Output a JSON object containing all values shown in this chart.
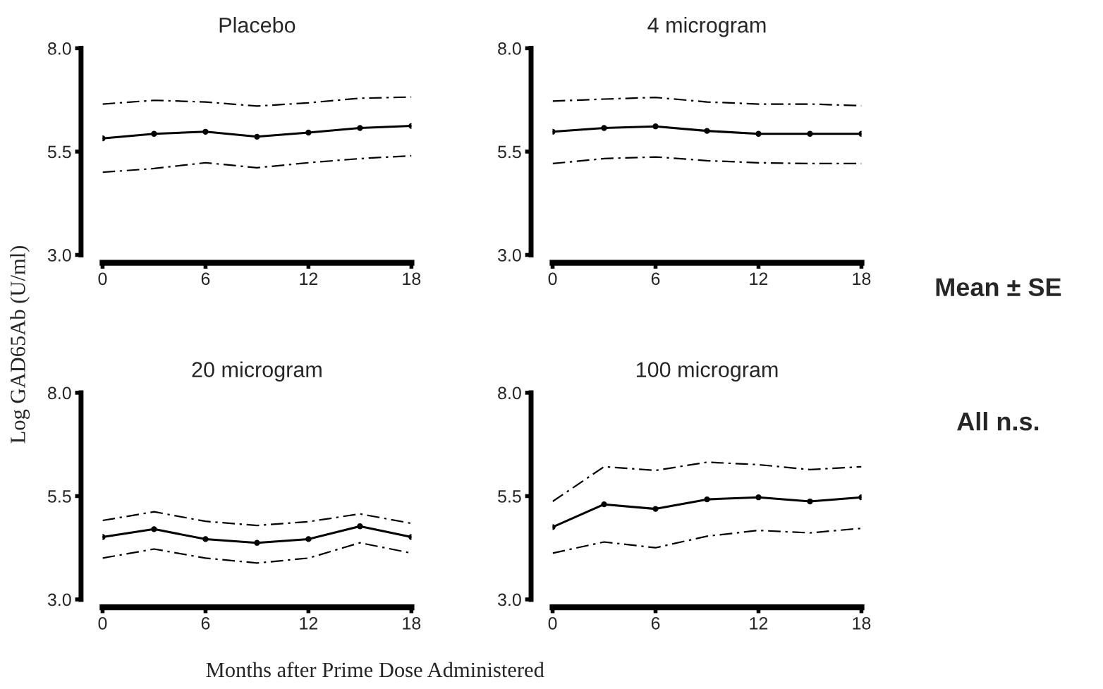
{
  "chart_data": [
    {
      "type": "line",
      "title": "Placebo",
      "ylabel": "Log GAD65Ab (U/ml)",
      "x": [
        0,
        3,
        6,
        9,
        12,
        15,
        18
      ],
      "marker": "circle",
      "line_style": "solid",
      "xlim": [
        0,
        18
      ],
      "xticks": [
        0,
        6,
        12,
        18
      ],
      "ylim": [
        3,
        8
      ],
      "yticks": [
        {
          "value": 3,
          "label": "3.0"
        },
        {
          "value": 5.5,
          "label": "5.5"
        },
        {
          "value": 8,
          "label": "8.0"
        }
      ],
      "grid": false,
      "legend": false,
      "series": [
        {
          "color": "#000000",
          "values": [
            5.82,
            5.93,
            5.98,
            5.86,
            5.96,
            6.07,
            6.12
          ]
        },
        {
          "color": "#000000",
          "line_style": "dashed",
          "marker": "none",
          "values": [
            5.0,
            5.09,
            5.23,
            5.11,
            5.23,
            5.33,
            5.4
          ]
        },
        {
          "color": "#000000",
          "line_style": "dashed",
          "marker": "none",
          "values": [
            6.65,
            6.74,
            6.7,
            6.6,
            6.68,
            6.79,
            6.82
          ]
        }
      ]
    },
    {
      "type": "line",
      "title": "4 microgram",
      "x": [
        0,
        3,
        6,
        9,
        12,
        15,
        18
      ],
      "marker": "circle",
      "line_style": "solid",
      "xlim": [
        0,
        18
      ],
      "xticks": [
        0,
        6,
        12,
        18
      ],
      "ylim": [
        3,
        8
      ],
      "yticks": [
        {
          "value": 3,
          "label": "3.0"
        },
        {
          "value": 5.5,
          "label": "5.5"
        },
        {
          "value": 8,
          "label": "8.0"
        }
      ],
      "grid": false,
      "legend": false,
      "annotations": [
        "Mean ± SE",
        "All n.s."
      ],
      "series": [
        {
          "color": "#000000",
          "values": [
            5.98,
            6.07,
            6.11,
            6.0,
            5.93,
            5.93,
            5.93
          ]
        },
        {
          "color": "#000000",
          "line_style": "dashed",
          "marker": "none",
          "values": [
            5.21,
            5.33,
            5.37,
            5.28,
            5.23,
            5.21,
            5.21
          ]
        },
        {
          "color": "#000000",
          "line_style": "dashed",
          "marker": "none",
          "values": [
            6.72,
            6.77,
            6.81,
            6.7,
            6.65,
            6.65,
            6.61
          ]
        }
      ]
    },
    {
      "type": "line",
      "title": "20 microgram",
      "xlabel": "Months after Prime Dose Administered",
      "x": [
        0,
        3,
        6,
        9,
        12,
        15,
        18
      ],
      "marker": "circle",
      "line_style": "solid",
      "xlim": [
        0,
        18
      ],
      "xticks": [
        0,
        6,
        12,
        18
      ],
      "ylim": [
        3,
        8
      ],
      "yticks": [
        {
          "value": 3,
          "label": "3.0"
        },
        {
          "value": 5.5,
          "label": "5.5"
        },
        {
          "value": 8,
          "label": "8.0"
        }
      ],
      "grid": false,
      "legend": false,
      "series": [
        {
          "color": "#000000",
          "values": [
            4.51,
            4.7,
            4.46,
            4.37,
            4.46,
            4.77,
            4.51
          ]
        },
        {
          "color": "#000000",
          "line_style": "dashed",
          "marker": "none",
          "values": [
            4.0,
            4.22,
            4.0,
            3.88,
            4.0,
            4.37,
            4.12
          ]
        },
        {
          "color": "#000000",
          "line_style": "dashed",
          "marker": "none",
          "values": [
            4.91,
            5.12,
            4.89,
            4.79,
            4.88,
            5.07,
            4.84
          ]
        }
      ]
    },
    {
      "type": "line",
      "title": "100 microgram",
      "x": [
        0,
        3,
        6,
        9,
        12,
        15,
        18
      ],
      "marker": "circle",
      "line_style": "solid",
      "xlim": [
        0,
        18
      ],
      "xticks": [
        0,
        6,
        12,
        18
      ],
      "ylim": [
        3,
        8
      ],
      "yticks": [
        {
          "value": 3,
          "label": "3.0"
        },
        {
          "value": 5.5,
          "label": "5.5"
        },
        {
          "value": 8,
          "label": "8.0"
        }
      ],
      "grid": false,
      "legend": false,
      "series": [
        {
          "color": "#000000",
          "values": [
            4.75,
            5.3,
            5.19,
            5.42,
            5.47,
            5.37,
            5.47
          ]
        },
        {
          "color": "#000000",
          "line_style": "dashed",
          "marker": "none",
          "values": [
            4.12,
            4.39,
            4.25,
            4.53,
            4.67,
            4.61,
            4.72
          ]
        },
        {
          "color": "#000000",
          "line_style": "dashed",
          "marker": "none",
          "values": [
            5.37,
            6.21,
            6.12,
            6.32,
            6.26,
            6.14,
            6.21
          ]
        }
      ]
    }
  ]
}
